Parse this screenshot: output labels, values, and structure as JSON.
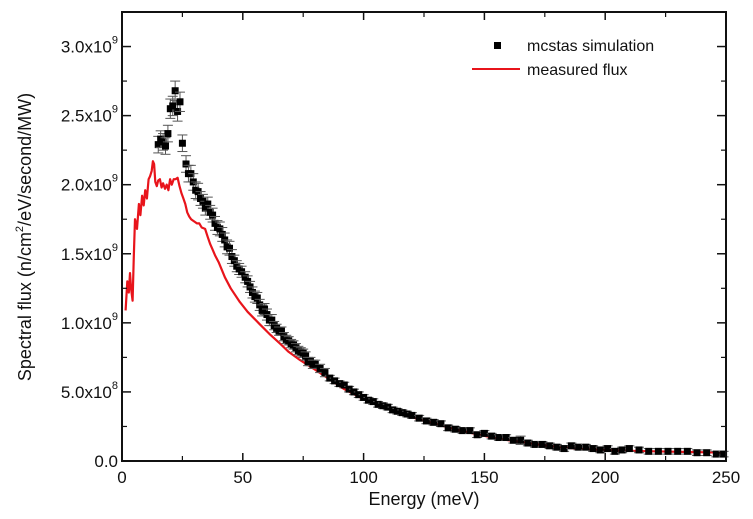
{
  "chart_data": {
    "type": "scatter",
    "title": "",
    "xlabel": "Energy (meV)",
    "ylabel": "Spectral flux (n/cm²/eV/second/MW)",
    "ylabel_parts": {
      "pre": "Spectral flux (n/cm",
      "sup": "2",
      "post": "/eV/second/MW)"
    },
    "xlim": [
      0,
      250
    ],
    "ylim": [
      0,
      3250000000.0
    ],
    "grid": false,
    "legend_position": "top-right",
    "x_ticks": [
      {
        "value": 0,
        "label": "0"
      },
      {
        "value": 50,
        "label": "50"
      },
      {
        "value": 100,
        "label": "100"
      },
      {
        "value": 150,
        "label": "150"
      },
      {
        "value": 200,
        "label": "200"
      },
      {
        "value": 250,
        "label": "250"
      }
    ],
    "x_minor_ticks": [
      25,
      75,
      125,
      175,
      225
    ],
    "y_ticks": [
      {
        "value": 0,
        "mant": "0.0",
        "exp": ""
      },
      {
        "value": 500000000.0,
        "mant": "5.0x10",
        "exp": "8"
      },
      {
        "value": 1000000000.0,
        "mant": "1.0x10",
        "exp": "9"
      },
      {
        "value": 1500000000.0,
        "mant": "1.5x10",
        "exp": "9"
      },
      {
        "value": 2000000000.0,
        "mant": "2.0x10",
        "exp": "9"
      },
      {
        "value": 2500000000.0,
        "mant": "2.5x10",
        "exp": "9"
      },
      {
        "value": 3000000000.0,
        "mant": "3.0x10",
        "exp": "9"
      }
    ],
    "y_minor_ticks": [
      250000000.0,
      750000000.0,
      1250000000.0,
      1750000000.0,
      2250000000.0,
      2750000000.0
    ],
    "series": [
      {
        "name": "mcstas simulation",
        "kind": "points-with-errorbars",
        "color": "#000000",
        "unit_scale": 1000000000.0,
        "points": [
          [
            15,
            2.29,
            0.06
          ],
          [
            16,
            2.33,
            0.06
          ],
          [
            17,
            2.31,
            0.06
          ],
          [
            18,
            2.28,
            0.06
          ],
          [
            19,
            2.37,
            0.06
          ],
          [
            20,
            2.55,
            0.07
          ],
          [
            21,
            2.57,
            0.07
          ],
          [
            22,
            2.68,
            0.07
          ],
          [
            23,
            2.53,
            0.07
          ],
          [
            24,
            2.6,
            0.07
          ],
          [
            25,
            2.3,
            0.06
          ],
          [
            26.5,
            2.15,
            0.06
          ],
          [
            27.5,
            2.08,
            0.06
          ],
          [
            28.5,
            2.08,
            0.06
          ],
          [
            29.5,
            2.02,
            0.06
          ],
          [
            30.5,
            1.96,
            0.06
          ],
          [
            31.5,
            1.95,
            0.06
          ],
          [
            32.5,
            1.9,
            0.05
          ],
          [
            33.5,
            1.88,
            0.05
          ],
          [
            34.5,
            1.83,
            0.05
          ],
          [
            35.5,
            1.86,
            0.05
          ],
          [
            36.5,
            1.8,
            0.05
          ],
          [
            37.5,
            1.78,
            0.05
          ],
          [
            38.5,
            1.72,
            0.05
          ],
          [
            39.5,
            1.69,
            0.05
          ],
          [
            40.5,
            1.68,
            0.05
          ],
          [
            41.5,
            1.64,
            0.05
          ],
          [
            42.5,
            1.6,
            0.05
          ],
          [
            43.5,
            1.55,
            0.05
          ],
          [
            44.5,
            1.54,
            0.05
          ],
          [
            45.5,
            1.48,
            0.05
          ],
          [
            46.5,
            1.45,
            0.04
          ],
          [
            47.5,
            1.41,
            0.04
          ],
          [
            48.5,
            1.39,
            0.04
          ],
          [
            49.5,
            1.37,
            0.04
          ],
          [
            51,
            1.33,
            0.04
          ],
          [
            52,
            1.3,
            0.04
          ],
          [
            53,
            1.26,
            0.04
          ],
          [
            54,
            1.22,
            0.04
          ],
          [
            55,
            1.19,
            0.04
          ],
          [
            56,
            1.18,
            0.04
          ],
          [
            57,
            1.13,
            0.04
          ],
          [
            58,
            1.09,
            0.04
          ],
          [
            59,
            1.1,
            0.04
          ],
          [
            60,
            1.06,
            0.04
          ],
          [
            61,
            1.02,
            0.04
          ],
          [
            62,
            1.02,
            0.04
          ],
          [
            63,
            0.98,
            0.03
          ],
          [
            64,
            0.96,
            0.03
          ],
          [
            65,
            0.94,
            0.03
          ],
          [
            66,
            0.94,
            0.03
          ],
          [
            67,
            0.9,
            0.03
          ],
          [
            68,
            0.88,
            0.03
          ],
          [
            69,
            0.87,
            0.03
          ],
          [
            70,
            0.85,
            0.03
          ],
          [
            71,
            0.84,
            0.03
          ],
          [
            72,
            0.82,
            0.03
          ],
          [
            73,
            0.8,
            0.03
          ],
          [
            74,
            0.79,
            0.03
          ],
          [
            75,
            0.78,
            0.03
          ],
          [
            76,
            0.76,
            0.03
          ],
          [
            77,
            0.72,
            0.03
          ],
          [
            78,
            0.72,
            0.03
          ],
          [
            79,
            0.7,
            0.03
          ],
          [
            80,
            0.7,
            0.03
          ],
          [
            82,
            0.67,
            0.03
          ],
          [
            84,
            0.64,
            0.03
          ],
          [
            86,
            0.6,
            0.02
          ],
          [
            88,
            0.58,
            0.02
          ],
          [
            90,
            0.56,
            0.02
          ],
          [
            92,
            0.55,
            0.02
          ],
          [
            94,
            0.52,
            0.02
          ],
          [
            96,
            0.5,
            0.02
          ],
          [
            98,
            0.48,
            0.02
          ],
          [
            100,
            0.46,
            0.02
          ],
          [
            102,
            0.44,
            0.02
          ],
          [
            104,
            0.43,
            0.02
          ],
          [
            106,
            0.41,
            0.02
          ],
          [
            108,
            0.4,
            0.02
          ],
          [
            110,
            0.39,
            0.02
          ],
          [
            112,
            0.37,
            0.02
          ],
          [
            114,
            0.36,
            0.02
          ],
          [
            116,
            0.35,
            0.02
          ],
          [
            118,
            0.34,
            0.02
          ],
          [
            120,
            0.33,
            0.02
          ],
          [
            123,
            0.31,
            0.02
          ],
          [
            126,
            0.29,
            0.02
          ],
          [
            129,
            0.28,
            0.02
          ],
          [
            132,
            0.27,
            0.02
          ],
          [
            135,
            0.24,
            0.02
          ],
          [
            138,
            0.23,
            0.02
          ],
          [
            141,
            0.22,
            0.02
          ],
          [
            144,
            0.22,
            0.02
          ],
          [
            147,
            0.19,
            0.02
          ],
          [
            150,
            0.2,
            0.02
          ],
          [
            153,
            0.18,
            0.02
          ],
          [
            156,
            0.17,
            0.02
          ],
          [
            159,
            0.17,
            0.02
          ],
          [
            162,
            0.15,
            0.02
          ],
          [
            165,
            0.15,
            0.03
          ],
          [
            168,
            0.13,
            0.02
          ],
          [
            171,
            0.12,
            0.02
          ],
          [
            174,
            0.12,
            0.02
          ],
          [
            177,
            0.11,
            0.02
          ],
          [
            180,
            0.1,
            0.02
          ],
          [
            183,
            0.09,
            0.02
          ],
          [
            186,
            0.11,
            0.02
          ],
          [
            189,
            0.1,
            0.02
          ],
          [
            192,
            0.1,
            0.02
          ],
          [
            195,
            0.09,
            0.02
          ],
          [
            198,
            0.08,
            0.02
          ],
          [
            201,
            0.09,
            0.02
          ],
          [
            204,
            0.07,
            0.02
          ],
          [
            207,
            0.08,
            0.02
          ],
          [
            210,
            0.09,
            0.02
          ],
          [
            214,
            0.08,
            0.02
          ],
          [
            218,
            0.07,
            0.02
          ],
          [
            222,
            0.07,
            0.02
          ],
          [
            226,
            0.07,
            0.02
          ],
          [
            230,
            0.07,
            0.02
          ],
          [
            234,
            0.07,
            0.02
          ],
          [
            238,
            0.06,
            0.02
          ],
          [
            242,
            0.06,
            0.02
          ],
          [
            246,
            0.05,
            0.02
          ],
          [
            249,
            0.05,
            0.02
          ]
        ]
      },
      {
        "name": "measured flux",
        "kind": "line",
        "color": "#e8141b",
        "unit_scale": 1000000000.0,
        "points": [
          [
            1.5,
            1.09
          ],
          [
            2.2,
            1.3
          ],
          [
            2.8,
            1.22
          ],
          [
            3.3,
            1.36
          ],
          [
            3.8,
            1.24
          ],
          [
            4.4,
            1.16
          ],
          [
            4.9,
            1.48
          ],
          [
            5.4,
            1.75
          ],
          [
            6.2,
            1.68
          ],
          [
            7.0,
            1.86
          ],
          [
            7.6,
            1.78
          ],
          [
            8.3,
            1.92
          ],
          [
            9.0,
            1.85
          ],
          [
            9.6,
            1.96
          ],
          [
            10.3,
            1.9
          ],
          [
            11.0,
            2.04
          ],
          [
            11.6,
            2.06
          ],
          [
            12.3,
            2.1
          ],
          [
            12.8,
            2.17
          ],
          [
            13.3,
            2.15
          ],
          [
            13.8,
            2.02
          ],
          [
            14.4,
            1.99
          ],
          [
            15.0,
            2.03
          ],
          [
            15.7,
            2.04
          ],
          [
            16.4,
            1.98
          ],
          [
            17.0,
            2.01
          ],
          [
            17.8,
            1.97
          ],
          [
            18.5,
            2.0
          ],
          [
            19.2,
            1.96
          ],
          [
            19.9,
            2.04
          ],
          [
            20.6,
            2.0
          ],
          [
            21.4,
            2.04
          ],
          [
            22.2,
            2.04
          ],
          [
            23.0,
            2.05
          ],
          [
            23.8,
            1.99
          ],
          [
            24.6,
            1.94
          ],
          [
            25.4,
            1.9
          ],
          [
            26.2,
            1.86
          ],
          [
            27.0,
            1.8
          ],
          [
            27.8,
            1.77
          ],
          [
            28.6,
            1.75
          ],
          [
            29.4,
            1.74
          ],
          [
            30.2,
            1.73
          ],
          [
            31.0,
            1.72
          ],
          [
            32.0,
            1.72
          ],
          [
            33.0,
            1.69
          ],
          [
            34.4,
            1.68
          ],
          [
            35.5,
            1.62
          ],
          [
            36.5,
            1.57
          ],
          [
            37.5,
            1.53
          ],
          [
            38.5,
            1.49
          ],
          [
            40,
            1.44
          ],
          [
            42.6,
            1.33
          ],
          [
            45,
            1.25
          ],
          [
            48.8,
            1.15
          ],
          [
            52,
            1.08
          ],
          [
            57,
            0.99
          ],
          [
            61,
            0.92
          ],
          [
            65.4,
            0.85
          ],
          [
            69,
            0.79
          ],
          [
            73.7,
            0.73
          ],
          [
            80,
            0.66
          ],
          [
            86,
            0.59
          ],
          [
            92,
            0.52
          ],
          [
            98.5,
            0.46
          ],
          [
            106,
            0.41
          ],
          [
            115,
            0.35
          ],
          [
            123,
            0.3
          ],
          [
            131.6,
            0.26
          ],
          [
            140,
            0.22
          ],
          [
            148,
            0.19
          ],
          [
            156,
            0.16
          ],
          [
            164.7,
            0.14
          ],
          [
            172,
            0.12
          ],
          [
            181,
            0.1
          ],
          [
            192,
            0.085
          ],
          [
            206,
            0.075
          ],
          [
            220,
            0.07
          ],
          [
            235,
            0.065
          ],
          [
            250,
            0.06
          ]
        ]
      }
    ]
  }
}
